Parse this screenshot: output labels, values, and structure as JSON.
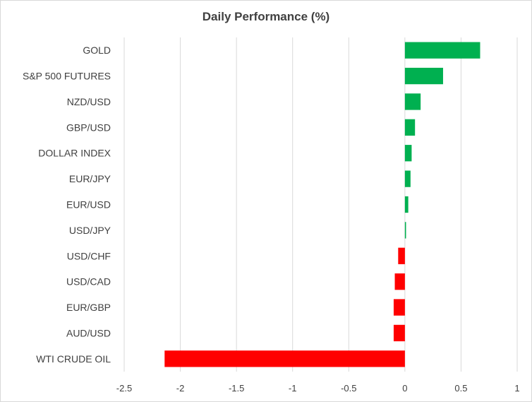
{
  "chart_data": {
    "type": "bar",
    "orientation": "horizontal",
    "title": "Daily Performance (%)",
    "xlabel": "",
    "ylabel": "",
    "categories": [
      "GOLD",
      "S&P 500 FUTURES",
      "NZD/USD",
      "GBP/USD",
      "DOLLAR INDEX",
      "EUR/JPY",
      "EUR/USD",
      "USD/JPY",
      "USD/CHF",
      "USD/CAD",
      "EUR/GBP",
      "AUD/USD",
      "WTI CRUDE OIL"
    ],
    "values": [
      0.67,
      0.34,
      0.14,
      0.09,
      0.06,
      0.05,
      0.03,
      0.01,
      -0.06,
      -0.09,
      -0.1,
      -0.1,
      -2.14
    ],
    "xlim": [
      -2.5,
      1
    ],
    "xticks": [
      "-2.5",
      "-2",
      "-1.5",
      "-1",
      "-0.5",
      "0",
      "0.5",
      "1"
    ],
    "grid": true,
    "legend": "none",
    "colors": {
      "positive": "#00b050",
      "negative": "#ff0000",
      "grid": "#d9d9d9",
      "text": "#404040"
    }
  }
}
